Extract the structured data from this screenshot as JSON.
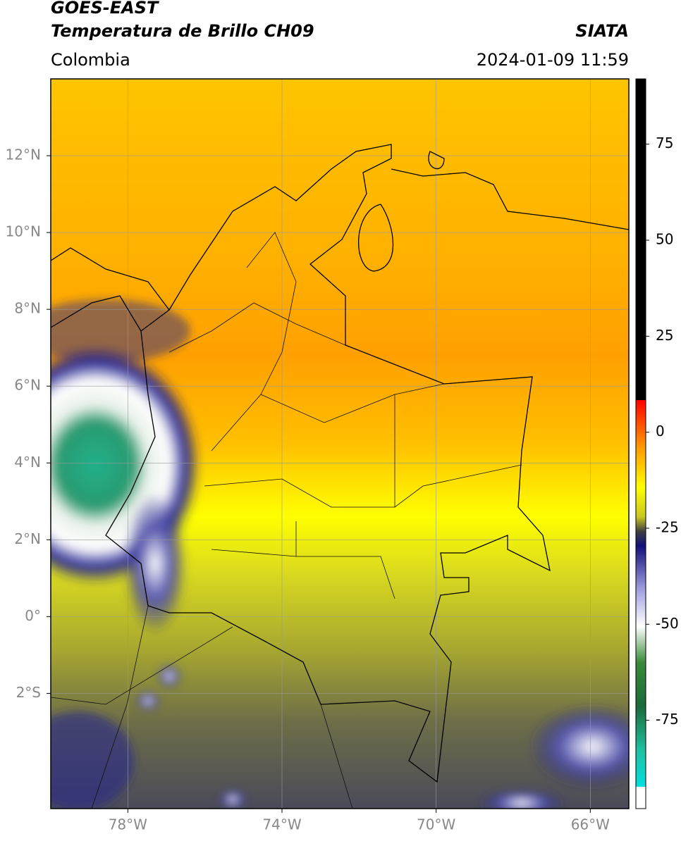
{
  "header": {
    "satellite": "GOES-EAST",
    "product": "Temperatura de Brillo CH09",
    "source": "SIATA",
    "region": "Colombia",
    "datetime": "2024-01-09 11:59"
  },
  "map": {
    "xlim": [
      -80,
      -65
    ],
    "ylim": [
      -5,
      14
    ],
    "xticks": [
      {
        "value": -78,
        "label": "78°W"
      },
      {
        "value": -74,
        "label": "74°W"
      },
      {
        "value": -70,
        "label": "70°W"
      },
      {
        "value": -66,
        "label": "66°W"
      }
    ],
    "yticks": [
      {
        "value": 12,
        "label": "12°N"
      },
      {
        "value": 10,
        "label": "10°N"
      },
      {
        "value": 8,
        "label": "8°N"
      },
      {
        "value": 6,
        "label": "6°N"
      },
      {
        "value": 4,
        "label": "4°N"
      },
      {
        "value": 2,
        "label": "2°N"
      },
      {
        "value": 0,
        "label": "0°"
      },
      {
        "value": -2,
        "label": "2°S"
      }
    ],
    "grid": true
  },
  "colorbar": {
    "lim": [
      -98,
      92
    ],
    "ticks": [
      75,
      50,
      25,
      0,
      -25,
      -50,
      -75
    ]
  }
}
